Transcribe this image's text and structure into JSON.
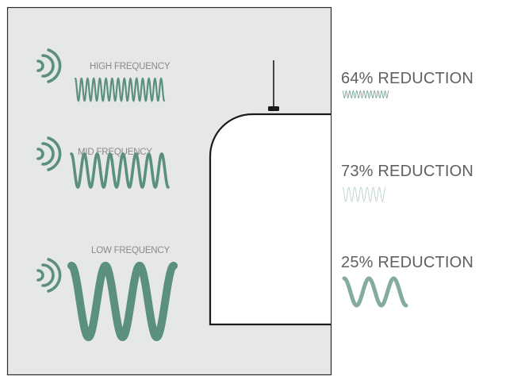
{
  "colors": {
    "panel_fill": "#e6e7e8",
    "panel_border": "#2b2b2b",
    "wave": "#5b8f80",
    "product_outline": "#1a1a1a",
    "text": "#606060",
    "wave_label": "#8a8a8a"
  },
  "icons": [
    "sound-emitter-icon",
    "pendant-light-icon"
  ],
  "frequencies": [
    {
      "key": "high",
      "label": "HIGH FREQUENCY",
      "reduction_label": "64% REDUCTION",
      "reduction_percent": 64
    },
    {
      "key": "mid",
      "label": "MID FREQUENCY",
      "reduction_label": "73% REDUCTION",
      "reduction_percent": 73
    },
    {
      "key": "low",
      "label": "LOW FREQUENCY",
      "reduction_label": "25% REDUCTION",
      "reduction_percent": 25
    }
  ]
}
